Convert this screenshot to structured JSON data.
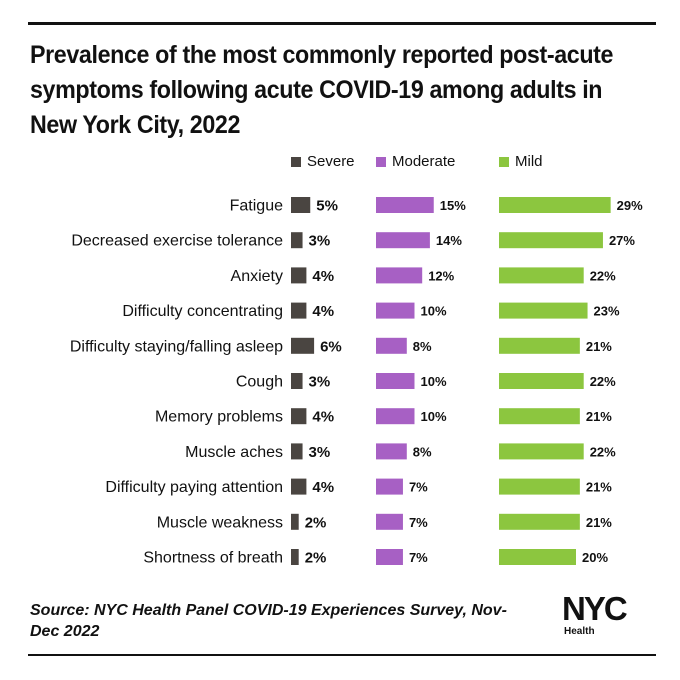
{
  "title": "Prevalence of the most commonly reported post-acute symptoms following acute COVID-19 among adults in New York City, 2022",
  "source": "Source: NYC Health Panel COVID-19 Experiences Survey, Nov-Dec 2022",
  "logo": {
    "word": "NYC",
    "sub": "Health"
  },
  "chart_data": {
    "type": "bar",
    "title": "Prevalence of the most commonly reported post-acute symptoms following acute COVID-19 among adults in New York City, 2022",
    "legend_placement": "top",
    "grid": false,
    "categories": [
      "Fatigue",
      "Decreased exercise tolerance",
      "Anxiety",
      "Difficulty concentrating",
      "Difficulty staying/falling asleep",
      "Cough",
      "Memory problems",
      "Muscle aches",
      "Difficulty paying attention",
      "Muscle weakness",
      "Shortness of breath"
    ],
    "series": [
      {
        "name": "Severe",
        "color": "#4a4541",
        "values": [
          5,
          3,
          4,
          4,
          6,
          3,
          4,
          3,
          4,
          2,
          2
        ]
      },
      {
        "name": "Moderate",
        "color": "#a760c4",
        "values": [
          15,
          14,
          12,
          10,
          8,
          10,
          10,
          8,
          7,
          7,
          7
        ]
      },
      {
        "name": "Mild",
        "color": "#8cc63f",
        "values": [
          29,
          27,
          22,
          23,
          21,
          22,
          21,
          22,
          21,
          21,
          20
        ]
      }
    ],
    "value_suffix": "%"
  }
}
